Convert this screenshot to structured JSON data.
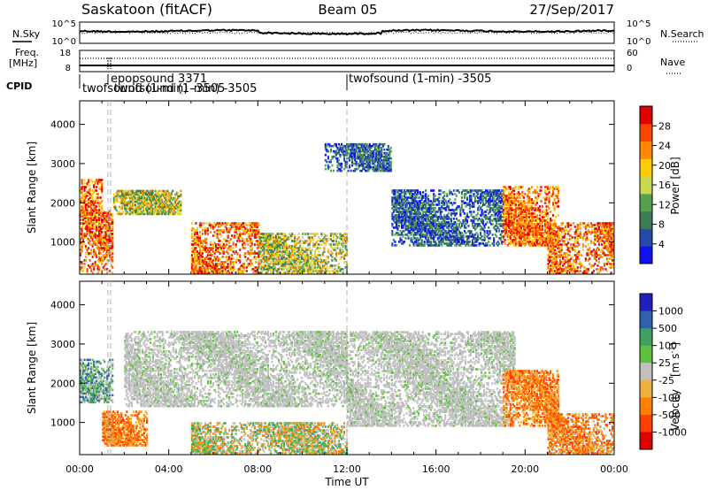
{
  "header": {
    "station": "Saskatoon (fitACF)",
    "beam": "Beam 05",
    "date": "27/Sep/2017"
  },
  "sky_panel": {
    "left_label": "N.Sky",
    "right_label": "N.Search",
    "tick_hi": "10^5",
    "tick_lo": "10^0",
    "right_tick_hi": "10^5",
    "right_tick_lo": "10^0"
  },
  "freq_panel": {
    "label_line1": "Freq.",
    "label_line2": "[MHz]",
    "tick_hi": "18",
    "tick_lo": "8",
    "right_label": "Nave",
    "right_tick_hi": "60",
    "right_tick_lo": "0"
  },
  "cpid_panel": {
    "label": "CPID",
    "programs": [
      {
        "name": "twofsound (1-min) -3505",
        "start": "00:00"
      },
      {
        "name": "epopsound 3371",
        "start": "01:15"
      },
      {
        "name": "twofsound (1-min) -3505",
        "start": "01:25"
      },
      {
        "name": "twofsound (1-min) -3505",
        "start": "12:00"
      }
    ]
  },
  "colors": {
    "power": [
      "#1010f0",
      "#2848b0",
      "#3c7c50",
      "#54a050",
      "#c8d850",
      "#ffcc00",
      "#ff8800",
      "#ff4400",
      "#e00000"
    ],
    "velocity": [
      "#2020c0",
      "#3060b0",
      "#40a060",
      "#60c040",
      "#c0c0c0",
      "#f0b040",
      "#ff8000",
      "#ff4000",
      "#e00000"
    ],
    "dashed_line": "#b0b0b0"
  },
  "chart_data": [
    {
      "type": "heatmap",
      "title": "Power",
      "ylabel": "Slant Range [km]",
      "xlabel": "Time UT",
      "xlim": [
        "00:00",
        "24:00"
      ],
      "ylim": [
        180,
        4600
      ],
      "x_ticks": [
        "00:00",
        "04:00",
        "08:00",
        "12:00",
        "16:00",
        "20:00",
        "00:00"
      ],
      "y_ticks": [
        1000,
        2000,
        3000,
        4000
      ],
      "colorbar": {
        "label": "Power [dB]",
        "ticks": [
          "4",
          "8",
          "12",
          "16",
          "20",
          "24",
          "28"
        ]
      },
      "regions": [
        {
          "t": [
            0.0,
            1.5
          ],
          "range": [
            200,
            1800
          ],
          "level": "high"
        },
        {
          "t": [
            0.0,
            1.0
          ],
          "range": [
            1800,
            2600
          ],
          "level": "high"
        },
        {
          "t": [
            1.5,
            4.5
          ],
          "range": [
            1700,
            2300
          ],
          "level": "medium"
        },
        {
          "t": [
            5.0,
            8.0
          ],
          "range": [
            200,
            1500
          ],
          "level": "high"
        },
        {
          "t": [
            8.0,
            12.0
          ],
          "range": [
            200,
            1200
          ],
          "level": "medium"
        },
        {
          "t": [
            11.0,
            14.0
          ],
          "range": [
            2800,
            3500
          ],
          "level": "low"
        },
        {
          "t": [
            14.0,
            19.0
          ],
          "range": [
            900,
            2300
          ],
          "level": "low"
        },
        {
          "t": [
            19.0,
            21.5
          ],
          "range": [
            900,
            2400
          ],
          "level": "high"
        },
        {
          "t": [
            21.0,
            24.0
          ],
          "range": [
            200,
            1500
          ],
          "level": "high"
        }
      ]
    },
    {
      "type": "heatmap",
      "title": "Velocity",
      "ylabel": "Slant Range [km]",
      "xlabel": "Time UT",
      "xlim": [
        "00:00",
        "24:00"
      ],
      "ylim": [
        180,
        4600
      ],
      "x_ticks": [
        "00:00",
        "04:00",
        "08:00",
        "12:00",
        "16:00",
        "20:00",
        "00:00"
      ],
      "y_ticks": [
        1000,
        2000,
        3000,
        4000
      ],
      "colorbar": {
        "label": "Velocity [m s^-1]",
        "ticks": [
          "1000",
          "500",
          "100",
          "25",
          "-25",
          "-100",
          "-500",
          "-1000"
        ]
      },
      "regions": [
        {
          "t": [
            0.0,
            1.5
          ],
          "range": [
            1500,
            2600
          ],
          "level": "positive"
        },
        {
          "t": [
            1.0,
            3.0
          ],
          "range": [
            400,
            1300
          ],
          "level": "negative"
        },
        {
          "t": [
            2.0,
            12.0
          ],
          "range": [
            1400,
            3300
          ],
          "level": "ground"
        },
        {
          "t": [
            5.0,
            12.0
          ],
          "range": [
            200,
            1000
          ],
          "level": "mixed"
        },
        {
          "t": [
            12.0,
            19.5
          ],
          "range": [
            900,
            3300
          ],
          "level": "ground"
        },
        {
          "t": [
            19.0,
            21.5
          ],
          "range": [
            900,
            2300
          ],
          "level": "negative"
        },
        {
          "t": [
            21.0,
            24.0
          ],
          "range": [
            200,
            1200
          ],
          "level": "negative"
        }
      ]
    }
  ],
  "axes": {
    "x_title": "Time UT",
    "y_title": "Slant Range [km]",
    "power_label": "Power [dB]",
    "velocity_label": "Velocity",
    "velocity_unit_main": "[m s",
    "velocity_unit_exp": "-1",
    "velocity_unit_end": "]"
  }
}
